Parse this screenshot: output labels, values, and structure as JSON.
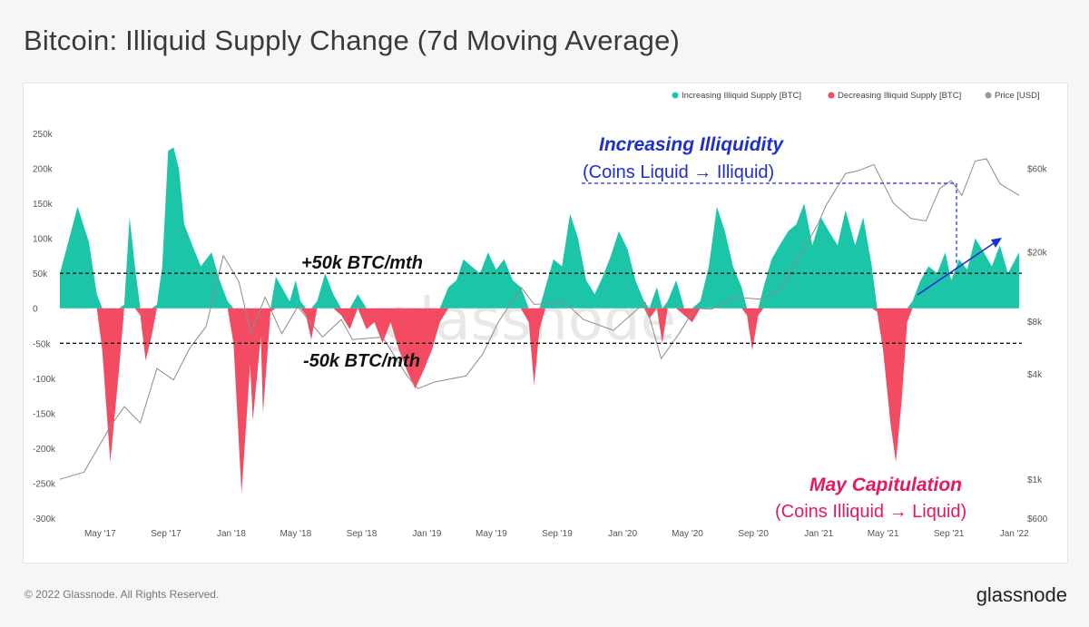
{
  "page": {
    "title": "Bitcoin: Illiquid Supply Change (7d Moving Average)",
    "copyright": "© 2022 Glassnode. All Rights Reserved.",
    "brand": "glassnode",
    "watermark": "glassnode"
  },
  "legend": {
    "items": [
      {
        "label": "Increasing Illiquid Supply [BTC]",
        "color": "#1cc4a8"
      },
      {
        "label": "Decreasing Illiquid Supply [BTC]",
        "color": "#f24b62"
      },
      {
        "label": "Price [USD]",
        "color": "#9a9a9a"
      }
    ]
  },
  "annotations": {
    "plus_line": "+50k BTC/mth",
    "minus_line": "-50k BTC/mth",
    "increasing_title": "Increasing Illiquidity",
    "increasing_sub": "(Coins Liquid → Illiquid)",
    "capitulation_title": "May Capitulation",
    "capitulation_sub": "(Coins Illiquid → Liquid)"
  },
  "chart_data": {
    "type": "area",
    "title": "Bitcoin: Illiquid Supply Change (7d Moving Average)",
    "y_left": {
      "ticks": [
        250000,
        200000,
        150000,
        100000,
        50000,
        0,
        -50000,
        -100000,
        -150000,
        -200000,
        -250000,
        -300000
      ],
      "tick_labels": [
        "250k",
        "200k",
        "150k",
        "100k",
        "50k",
        "0",
        "-50k",
        "-100k",
        "-150k",
        "-200k",
        "-250k",
        "-300k"
      ],
      "range": [
        -300000,
        250000
      ]
    },
    "y_right": {
      "scale": "log",
      "ticks": [
        60000,
        20000,
        8000,
        4000,
        1000,
        600
      ],
      "tick_labels": [
        "$60k",
        "$20k",
        "$8k",
        "$4k",
        "$1k",
        "$600"
      ]
    },
    "x_axis": {
      "range": [
        "2017-02-15",
        "2022-01-15"
      ],
      "ticks": [
        "2017-05-01",
        "2017-09-01",
        "2018-01-01",
        "2018-05-01",
        "2018-09-01",
        "2019-01-01",
        "2019-05-01",
        "2019-09-01",
        "2020-01-01",
        "2020-05-01",
        "2020-09-01",
        "2021-01-01",
        "2021-05-01",
        "2021-09-01",
        "2022-01-01"
      ],
      "tick_labels": [
        "May '17",
        "Sep '17",
        "Jan '18",
        "May '18",
        "Sep '18",
        "Jan '19",
        "May '19",
        "Sep '19",
        "Jan '20",
        "May '20",
        "Sep '20",
        "Jan '21",
        "May '21",
        "Sep '21",
        "Jan '22"
      ]
    },
    "reference_lines": [
      50000,
      -50000
    ],
    "supply_change_points": [
      [
        "2017-02-15",
        50000
      ],
      [
        "2017-03-01",
        90000
      ],
      [
        "2017-03-20",
        145000
      ],
      [
        "2017-04-10",
        95000
      ],
      [
        "2017-04-25",
        20000
      ],
      [
        "2017-05-05",
        -60000
      ],
      [
        "2017-05-20",
        -220000
      ],
      [
        "2017-06-05",
        -90000
      ],
      [
        "2017-06-15",
        5000
      ],
      [
        "2017-06-25",
        130000
      ],
      [
        "2017-07-05",
        60000
      ],
      [
        "2017-07-15",
        -10000
      ],
      [
        "2017-07-25",
        -75000
      ],
      [
        "2017-08-05",
        -40000
      ],
      [
        "2017-08-15",
        5000
      ],
      [
        "2017-08-25",
        60000
      ],
      [
        "2017-09-05",
        225000
      ],
      [
        "2017-09-15",
        230000
      ],
      [
        "2017-09-25",
        200000
      ],
      [
        "2017-10-05",
        120000
      ],
      [
        "2017-10-20",
        90000
      ],
      [
        "2017-11-05",
        60000
      ],
      [
        "2017-11-25",
        80000
      ],
      [
        "2017-12-10",
        40000
      ],
      [
        "2017-12-25",
        10000
      ],
      [
        "2018-01-05",
        -50000
      ],
      [
        "2018-01-20",
        -265000
      ],
      [
        "2018-02-05",
        -80000
      ],
      [
        "2018-02-10",
        -160000
      ],
      [
        "2018-02-25",
        -40000
      ],
      [
        "2018-03-01",
        -150000
      ],
      [
        "2018-03-15",
        -5000
      ],
      [
        "2018-03-25",
        45000
      ],
      [
        "2018-04-05",
        30000
      ],
      [
        "2018-04-20",
        10000
      ],
      [
        "2018-05-01",
        40000
      ],
      [
        "2018-05-10",
        10000
      ],
      [
        "2018-05-20",
        -10000
      ],
      [
        "2018-05-30",
        -45000
      ],
      [
        "2018-06-10",
        10000
      ],
      [
        "2018-06-25",
        50000
      ],
      [
        "2018-07-10",
        20000
      ],
      [
        "2018-07-25",
        -10000
      ],
      [
        "2018-08-10",
        -30000
      ],
      [
        "2018-08-25",
        20000
      ],
      [
        "2018-09-10",
        -30000
      ],
      [
        "2018-09-25",
        -20000
      ],
      [
        "2018-10-10",
        -50000
      ],
      [
        "2018-10-25",
        -20000
      ],
      [
        "2018-11-10",
        -60000
      ],
      [
        "2018-11-25",
        -90000
      ],
      [
        "2018-12-10",
        -115000
      ],
      [
        "2018-12-25",
        -90000
      ],
      [
        "2019-01-10",
        -60000
      ],
      [
        "2019-01-25",
        -20000
      ],
      [
        "2019-02-10",
        30000
      ],
      [
        "2019-02-25",
        40000
      ],
      [
        "2019-03-10",
        70000
      ],
      [
        "2019-03-25",
        60000
      ],
      [
        "2019-04-10",
        50000
      ],
      [
        "2019-04-25",
        80000
      ],
      [
        "2019-05-10",
        55000
      ],
      [
        "2019-05-25",
        70000
      ],
      [
        "2019-06-10",
        40000
      ],
      [
        "2019-06-25",
        30000
      ],
      [
        "2019-07-10",
        -20000
      ],
      [
        "2019-07-20",
        -110000
      ],
      [
        "2019-07-30",
        -30000
      ],
      [
        "2019-08-10",
        30000
      ],
      [
        "2019-08-25",
        70000
      ],
      [
        "2019-09-10",
        60000
      ],
      [
        "2019-09-25",
        135000
      ],
      [
        "2019-10-10",
        100000
      ],
      [
        "2019-10-25",
        40000
      ],
      [
        "2019-11-10",
        20000
      ],
      [
        "2019-11-25",
        45000
      ],
      [
        "2019-12-10",
        75000
      ],
      [
        "2019-12-25",
        110000
      ],
      [
        "2020-01-10",
        85000
      ],
      [
        "2020-01-25",
        40000
      ],
      [
        "2020-02-10",
        10000
      ],
      [
        "2020-02-20",
        -15000
      ],
      [
        "2020-03-05",
        30000
      ],
      [
        "2020-03-15",
        -50000
      ],
      [
        "2020-03-25",
        10000
      ],
      [
        "2020-04-10",
        40000
      ],
      [
        "2020-04-25",
        -10000
      ],
      [
        "2020-05-10",
        -20000
      ],
      [
        "2020-05-25",
        10000
      ],
      [
        "2020-06-10",
        60000
      ],
      [
        "2020-06-25",
        145000
      ],
      [
        "2020-07-10",
        110000
      ],
      [
        "2020-07-25",
        60000
      ],
      [
        "2020-08-10",
        30000
      ],
      [
        "2020-08-20",
        -10000
      ],
      [
        "2020-08-30",
        -60000
      ],
      [
        "2020-09-10",
        -10000
      ],
      [
        "2020-09-20",
        30000
      ],
      [
        "2020-10-05",
        70000
      ],
      [
        "2020-10-20",
        90000
      ],
      [
        "2020-11-05",
        110000
      ],
      [
        "2020-11-20",
        120000
      ],
      [
        "2020-12-05",
        150000
      ],
      [
        "2020-12-20",
        90000
      ],
      [
        "2021-01-05",
        130000
      ],
      [
        "2021-01-20",
        110000
      ],
      [
        "2021-02-05",
        90000
      ],
      [
        "2021-02-20",
        140000
      ],
      [
        "2021-03-10",
        90000
      ],
      [
        "2021-03-25",
        130000
      ],
      [
        "2021-04-10",
        60000
      ],
      [
        "2021-04-20",
        -5000
      ],
      [
        "2021-05-01",
        -60000
      ],
      [
        "2021-05-15",
        -165000
      ],
      [
        "2021-05-25",
        -220000
      ],
      [
        "2021-06-05",
        -130000
      ],
      [
        "2021-06-15",
        -20000
      ],
      [
        "2021-06-25",
        10000
      ],
      [
        "2021-07-10",
        40000
      ],
      [
        "2021-07-25",
        60000
      ],
      [
        "2021-08-10",
        50000
      ],
      [
        "2021-08-25",
        80000
      ],
      [
        "2021-09-05",
        40000
      ],
      [
        "2021-09-20",
        70000
      ],
      [
        "2021-10-05",
        55000
      ],
      [
        "2021-10-20",
        100000
      ],
      [
        "2021-11-05",
        80000
      ],
      [
        "2021-11-20",
        60000
      ],
      [
        "2021-12-05",
        90000
      ],
      [
        "2021-12-20",
        50000
      ],
      [
        "2022-01-10",
        80000
      ]
    ],
    "price_points": [
      [
        "2017-02-15",
        1000
      ],
      [
        "2017-04-01",
        1100
      ],
      [
        "2017-05-20",
        2000
      ],
      [
        "2017-06-15",
        2600
      ],
      [
        "2017-07-15",
        2100
      ],
      [
        "2017-08-15",
        4300
      ],
      [
        "2017-09-15",
        3700
      ],
      [
        "2017-10-15",
        5600
      ],
      [
        "2017-11-15",
        7500
      ],
      [
        "2017-12-17",
        19000
      ],
      [
        "2018-01-15",
        13500
      ],
      [
        "2018-02-06",
        6900
      ],
      [
        "2018-03-05",
        11000
      ],
      [
        "2018-04-05",
        6800
      ],
      [
        "2018-05-05",
        9700
      ],
      [
        "2018-06-20",
        6500
      ],
      [
        "2018-07-25",
        8200
      ],
      [
        "2018-08-15",
        6300
      ],
      [
        "2018-10-10",
        6500
      ],
      [
        "2018-11-25",
        3900
      ],
      [
        "2018-12-15",
        3300
      ],
      [
        "2019-01-15",
        3600
      ],
      [
        "2019-03-15",
        3900
      ],
      [
        "2019-04-15",
        5200
      ],
      [
        "2019-05-15",
        8000
      ],
      [
        "2019-06-26",
        12500
      ],
      [
        "2019-07-20",
        10000
      ],
      [
        "2019-09-15",
        10300
      ],
      [
        "2019-10-20",
        8200
      ],
      [
        "2019-12-15",
        7100
      ],
      [
        "2020-02-12",
        10300
      ],
      [
        "2020-03-13",
        4900
      ],
      [
        "2020-04-15",
        6800
      ],
      [
        "2020-05-15",
        9500
      ],
      [
        "2020-06-15",
        9400
      ],
      [
        "2020-07-28",
        11000
      ],
      [
        "2020-09-15",
        10700
      ],
      [
        "2020-10-20",
        12000
      ],
      [
        "2020-11-25",
        18500
      ],
      [
        "2020-12-31",
        29000
      ],
      [
        "2021-01-15",
        37000
      ],
      [
        "2021-02-20",
        56000
      ],
      [
        "2021-03-15",
        58000
      ],
      [
        "2021-04-14",
        63000
      ],
      [
        "2021-05-20",
        38000
      ],
      [
        "2021-06-22",
        31000
      ],
      [
        "2021-07-20",
        30000
      ],
      [
        "2021-08-15",
        46000
      ],
      [
        "2021-09-05",
        51000
      ],
      [
        "2021-09-25",
        42000
      ],
      [
        "2021-10-20",
        66000
      ],
      [
        "2021-11-10",
        68000
      ],
      [
        "2021-12-05",
        49000
      ],
      [
        "2022-01-10",
        42000
      ]
    ]
  }
}
